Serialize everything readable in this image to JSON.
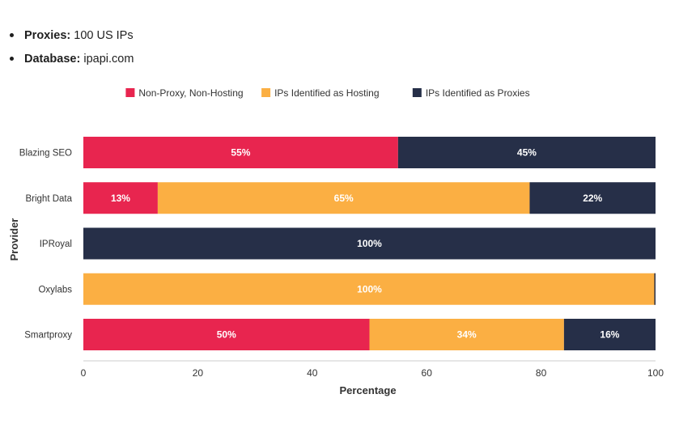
{
  "bullets": [
    {
      "label": "Proxies:",
      "value": "100 US IPs"
    },
    {
      "label": "Database:",
      "value": "ipapi.com"
    }
  ],
  "colors": {
    "non_proxy": "#e8254f",
    "hosting": "#fbaf43",
    "proxies": "#262f48"
  },
  "chart_data": {
    "type": "bar",
    "orientation": "horizontal",
    "stacked": true,
    "categories": [
      "Blazing SEO",
      "Bright Data",
      "IPRoyal",
      "Oxylabs",
      "Smartproxy"
    ],
    "series": [
      {
        "name": "Non-Proxy, Non-Hosting",
        "color": "#e8254f",
        "values": [
          55,
          13,
          0,
          0,
          50
        ]
      },
      {
        "name": "IPs Identified as Hosting",
        "color": "#fbaf43",
        "values": [
          0,
          65,
          0,
          100,
          34
        ]
      },
      {
        "name": "IPs Identified as Proxies",
        "color": "#262f48",
        "values": [
          45,
          22,
          100,
          0,
          16
        ]
      }
    ],
    "value_suffix": "%",
    "xlabel": "Percentage",
    "ylabel": "Provider",
    "xlim": [
      0,
      100
    ],
    "xticks": [
      0,
      20,
      40,
      60,
      80,
      100
    ],
    "grid": false,
    "legend_position": "top"
  }
}
